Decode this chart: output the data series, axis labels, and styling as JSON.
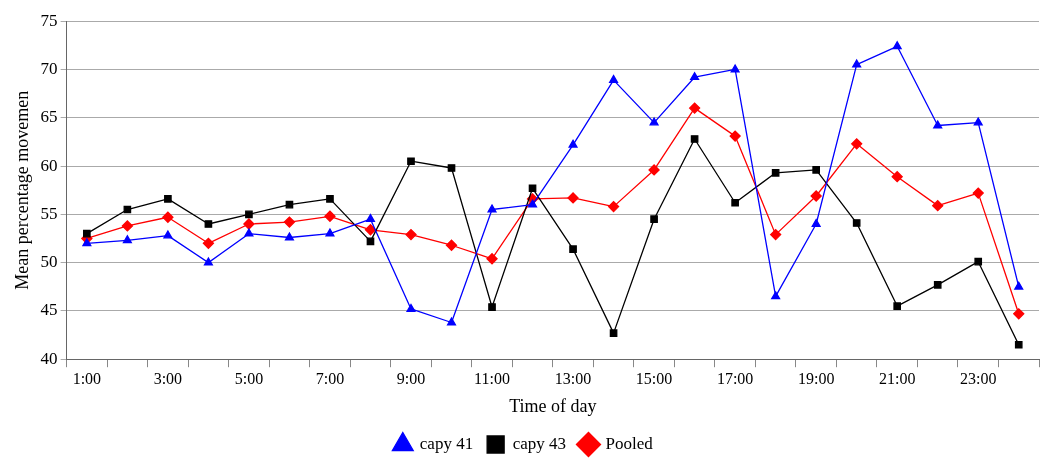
{
  "chart_data": {
    "type": "line",
    "xlabel": "Time of day",
    "ylabel": "Mean percentage movemen",
    "categories": [
      "1:00",
      null,
      "3:00",
      null,
      "5:00",
      null,
      "7:00",
      null,
      "9:00",
      null,
      "11:00",
      null,
      "13:00",
      null,
      "15:00",
      null,
      "17:00",
      null,
      "19:00",
      null,
      "21:00",
      null,
      "23:00",
      null
    ],
    "series": [
      {
        "name": "capy 41",
        "color": "#0000ff",
        "marker": "triangle",
        "values": [
          52,
          52.3,
          52.8,
          50,
          53,
          52.6,
          53,
          54.5,
          45.2,
          43.8,
          55.5,
          56,
          62.2,
          68.9,
          64.5,
          69.2,
          70,
          46.5,
          54,
          70.5,
          72.4,
          64.2,
          64.5,
          47.5
        ]
      },
      {
        "name": "capy 43",
        "color": "#000000",
        "marker": "square",
        "values": [
          53,
          55.5,
          56.6,
          54,
          55,
          56,
          56.6,
          52.2,
          60.5,
          59.8,
          45.4,
          57.7,
          51.4,
          42.7,
          54.5,
          62.8,
          56.2,
          59.3,
          59.6,
          54.1,
          45.5,
          47.7,
          50.1,
          41.5
        ]
      },
      {
        "name": "Pooled",
        "color": "#ff0000",
        "marker": "diamond",
        "values": [
          52.5,
          53.8,
          54.7,
          52,
          54,
          54.2,
          54.8,
          53.4,
          52.9,
          51.8,
          50.4,
          56.6,
          56.7,
          55.8,
          59.6,
          66,
          63.1,
          52.9,
          56.9,
          62.3,
          58.9,
          55.9,
          57.2,
          44.7
        ]
      }
    ],
    "ylim": [
      40,
      75
    ],
    "yticks": [
      40,
      45,
      50,
      55,
      60,
      65,
      70,
      75
    ],
    "grid": "y",
    "legend": "bottom",
    "line_style": "solid"
  }
}
